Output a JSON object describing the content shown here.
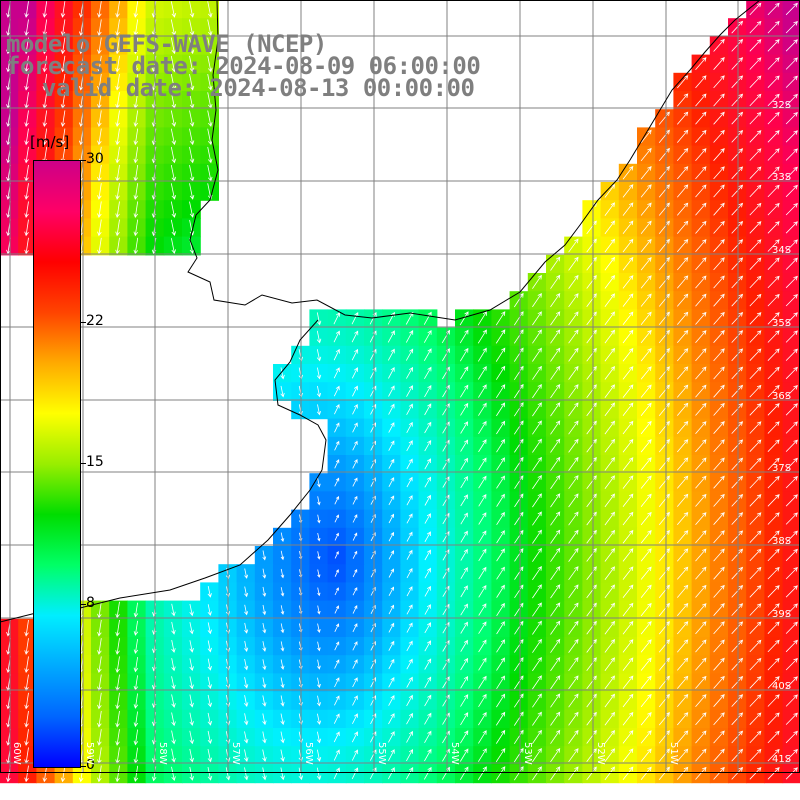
{
  "title": {
    "line1": "modelo GEFS-WAVE (NCEP)",
    "line2": "forecast date: 2024-08-09 06:00:00",
    "line3": "valid date: 2024-08-13 00:00:00"
  },
  "colorbar": {
    "unit": "[m/s]",
    "ticks": [
      {
        "value": 30,
        "label": "30"
      },
      {
        "value": 22,
        "label": "22"
      },
      {
        "value": 15,
        "label": "15"
      },
      {
        "value": 8,
        "label": "8"
      },
      {
        "value": 0,
        "label": "0"
      }
    ],
    "colors": [
      "#0000ff",
      "#0066ff",
      "#00aaff",
      "#00eeff",
      "#00ff66",
      "#00dd00",
      "#99ee00",
      "#ffff00",
      "#ffaa00",
      "#ff4400",
      "#ff0000",
      "#ff0066",
      "#cc0088"
    ]
  },
  "lat_labels": [
    "32S",
    "33S",
    "34S",
    "35S",
    "36S",
    "37S",
    "38S",
    "39S",
    "40S",
    "41S"
  ],
  "lon_labels": [
    "60W",
    "59W",
    "58W",
    "57W",
    "56W",
    "55W",
    "54W",
    "53W",
    "52W",
    "51W"
  ],
  "colors": {
    "land": "#ffffff",
    "grid": "#808080",
    "coast": "#000000",
    "arrow": "#ffffff"
  }
}
